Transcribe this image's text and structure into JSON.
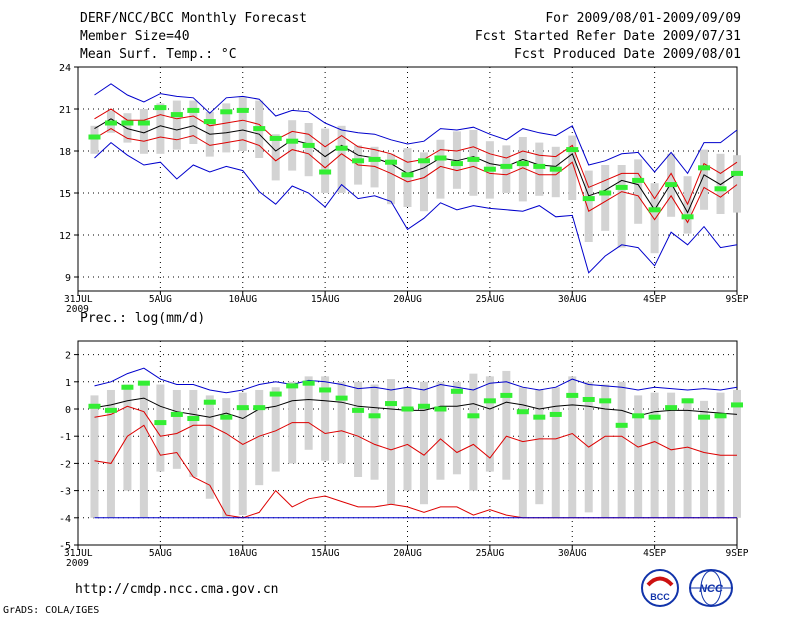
{
  "header": {
    "title": "DERF/NCC/BCC Monthly Forecast",
    "member_size": "Member Size=40",
    "variable": "Mean Surf. Temp.: °C",
    "forecast_period": "For 2009/08/01-2009/09/09",
    "fcst_started": "Fcst Started Refer Date 2009/07/31",
    "fcst_produced": "Fcst Produced Date 2009/08/01"
  },
  "footer": {
    "url": "http://cmdp.ncc.cma.gov.cn",
    "grads_credit": "GrADS: COLA/IGES",
    "logo_bcc_text": "BCC",
    "logo_ncc_text": "NCC"
  },
  "colors": {
    "envelope": "#0000cc",
    "spread": "#dd0000",
    "mean": "#000000",
    "observed": "#33ee33",
    "box": "#d3d3d3"
  },
  "chart_data": [
    {
      "type": "line",
      "title": "Mean Surf. Temp.: °C",
      "x_ticks": [
        "31JUL\n2009",
        "5AUG",
        "10AUG",
        "15AUG",
        "20AUG",
        "25AUG",
        "30AUG",
        "4SEP",
        "9SEP"
      ],
      "x_tick_days": [
        0,
        5,
        10,
        15,
        20,
        25,
        30,
        35,
        40
      ],
      "ylim": [
        8,
        24
      ],
      "y_ticks": [
        9,
        12,
        15,
        18,
        21,
        24
      ],
      "grid": true,
      "days": [
        1,
        2,
        3,
        4,
        5,
        6,
        7,
        8,
        9,
        10,
        11,
        12,
        13,
        14,
        15,
        16,
        17,
        18,
        19,
        20,
        21,
        22,
        23,
        24,
        25,
        26,
        27,
        28,
        29,
        30,
        31,
        32,
        33,
        34,
        35,
        36,
        37,
        38,
        39,
        40
      ],
      "series": [
        {
          "name": "max",
          "values": [
            22.0,
            22.8,
            22.0,
            21.5,
            22.1,
            21.9,
            21.8,
            20.7,
            21.8,
            21.9,
            21.7,
            20.5,
            20.9,
            20.8,
            20.0,
            19.5,
            19.3,
            19.2,
            18.8,
            18.5,
            18.7,
            19.6,
            19.5,
            19.7,
            19.2,
            18.8,
            19.6,
            19.3,
            19.1,
            19.8,
            17.0,
            17.3,
            17.8,
            17.9,
            16.5,
            17.9,
            16.4,
            18.6,
            18.6,
            19.5
          ]
        },
        {
          "name": "upper",
          "values": [
            20.3,
            21.0,
            20.2,
            20.2,
            20.6,
            20.3,
            20.5,
            19.8,
            20.0,
            20.2,
            19.9,
            18.8,
            19.4,
            19.2,
            18.3,
            19.1,
            18.3,
            18.1,
            17.8,
            17.2,
            17.4,
            18.1,
            18.0,
            18.3,
            17.8,
            17.5,
            18.0,
            17.7,
            17.6,
            18.4,
            15.4,
            15.9,
            16.4,
            16.4,
            14.6,
            16.4,
            14.2,
            17.1,
            16.4,
            17.2
          ]
        },
        {
          "name": "mean",
          "values": [
            19.6,
            20.3,
            19.6,
            19.3,
            19.8,
            19.5,
            19.8,
            19.2,
            19.3,
            19.5,
            19.2,
            18.0,
            18.8,
            18.5,
            17.6,
            18.4,
            17.7,
            17.5,
            17.1,
            16.4,
            16.8,
            17.5,
            17.3,
            17.6,
            17.1,
            16.9,
            17.4,
            17.0,
            16.9,
            17.8,
            14.8,
            15.2,
            15.9,
            15.6,
            13.8,
            15.7,
            13.6,
            16.3,
            15.6,
            16.4
          ]
        },
        {
          "name": "lower",
          "values": [
            18.9,
            19.6,
            18.9,
            18.7,
            19.0,
            18.8,
            19.1,
            18.4,
            18.6,
            18.8,
            18.4,
            17.3,
            18.1,
            17.8,
            16.8,
            17.8,
            17.0,
            16.9,
            16.4,
            15.8,
            16.1,
            16.9,
            16.6,
            16.9,
            16.4,
            16.3,
            16.8,
            16.3,
            16.3,
            17.2,
            13.7,
            14.4,
            15.1,
            14.8,
            13.1,
            14.8,
            12.9,
            15.4,
            14.7,
            15.6
          ]
        },
        {
          "name": "min",
          "values": [
            17.5,
            18.6,
            17.7,
            17.0,
            17.2,
            16.0,
            17.0,
            16.5,
            16.9,
            16.6,
            15.1,
            14.2,
            15.5,
            15.0,
            14.0,
            15.6,
            14.6,
            14.8,
            14.4,
            12.4,
            13.2,
            14.3,
            13.8,
            14.1,
            13.9,
            13.8,
            13.7,
            14.1,
            13.3,
            13.4,
            9.3,
            10.5,
            11.3,
            11.1,
            9.8,
            12.2,
            11.3,
            12.6,
            11.1,
            11.3
          ]
        },
        {
          "name": "obs",
          "values": [
            19.0,
            20.0,
            20.0,
            20.0,
            21.1,
            20.6,
            20.9,
            20.1,
            20.8,
            20.9,
            19.6,
            18.9,
            18.7,
            18.4,
            16.5,
            18.2,
            17.3,
            17.4,
            17.2,
            16.3,
            17.3,
            17.5,
            17.1,
            17.4,
            16.7,
            16.9,
            17.1,
            16.9,
            16.7,
            18.1,
            14.6,
            15.0,
            15.4,
            15.9,
            13.8,
            15.6,
            13.3,
            16.8,
            15.3,
            16.4
          ]
        }
      ],
      "boxes": [
        [
          17.8,
          19.8
        ],
        [
          19.3,
          20.9
        ],
        [
          18.6,
          20.7
        ],
        [
          17.8,
          21.0
        ],
        [
          17.8,
          21.4
        ],
        [
          18.1,
          21.6
        ],
        [
          18.5,
          21.6
        ],
        [
          17.6,
          20.8
        ],
        [
          17.9,
          21.4
        ],
        [
          18.0,
          21.9
        ],
        [
          17.5,
          21.6
        ],
        [
          15.9,
          19.2
        ],
        [
          16.6,
          20.2
        ],
        [
          16.2,
          20.0
        ],
        [
          15.0,
          19.6
        ],
        [
          15.0,
          19.8
        ],
        [
          15.6,
          18.4
        ],
        [
          15.4,
          18.3
        ],
        [
          14.2,
          17.8
        ],
        [
          14.0,
          18.2
        ],
        [
          13.7,
          17.9
        ],
        [
          14.6,
          18.8
        ],
        [
          15.3,
          19.4
        ],
        [
          14.8,
          19.5
        ],
        [
          14.6,
          18.7
        ],
        [
          15.0,
          18.4
        ],
        [
          14.4,
          19.0
        ],
        [
          14.8,
          18.6
        ],
        [
          14.7,
          18.3
        ],
        [
          14.5,
          19.1
        ],
        [
          11.5,
          16.6
        ],
        [
          12.3,
          17.0
        ],
        [
          11.1,
          17.0
        ],
        [
          12.8,
          17.4
        ],
        [
          10.7,
          15.7
        ],
        [
          13.3,
          17.8
        ],
        [
          12.1,
          16.2
        ],
        [
          13.8,
          18.1
        ],
        [
          13.5,
          17.8
        ],
        [
          13.6,
          17.7
        ]
      ]
    },
    {
      "type": "line",
      "title": "Prec.: log(mm/d)",
      "x_ticks": [
        "31JUL\n2009",
        "5AUG",
        "10AUG",
        "15AUG",
        "20AUG",
        "25AUG",
        "30AUG",
        "4SEP",
        "9SEP"
      ],
      "x_tick_days": [
        0,
        5,
        10,
        15,
        20,
        25,
        30,
        35,
        40
      ],
      "ylim": [
        -5,
        2.5
      ],
      "y_ticks": [
        -5,
        -4,
        -3,
        -2,
        -1,
        0,
        1,
        2
      ],
      "grid": true,
      "days": [
        1,
        2,
        3,
        4,
        5,
        6,
        7,
        8,
        9,
        10,
        11,
        12,
        13,
        14,
        15,
        16,
        17,
        18,
        19,
        20,
        21,
        22,
        23,
        24,
        25,
        26,
        27,
        28,
        29,
        30,
        31,
        32,
        33,
        34,
        35,
        36,
        37,
        38,
        39,
        40
      ],
      "series": [
        {
          "name": "max",
          "values": [
            0.85,
            1.0,
            1.3,
            1.5,
            1.1,
            0.9,
            0.9,
            0.7,
            0.6,
            0.7,
            0.9,
            1.0,
            0.9,
            1.05,
            1.0,
            0.9,
            0.75,
            0.8,
            0.7,
            0.8,
            0.7,
            0.9,
            0.8,
            0.7,
            0.95,
            1.0,
            0.8,
            0.7,
            0.8,
            1.1,
            0.9,
            0.85,
            0.8,
            0.7,
            0.8,
            0.75,
            0.7,
            0.75,
            0.7,
            0.8
          ]
        },
        {
          "name": "mean",
          "values": [
            0.05,
            0.15,
            0.3,
            0.4,
            0.1,
            -0.1,
            -0.2,
            -0.3,
            -0.15,
            -0.35,
            0.0,
            0.1,
            0.3,
            0.35,
            0.3,
            0.25,
            0.1,
            0.05,
            0.0,
            -0.05,
            -0.05,
            0.1,
            0.1,
            0.2,
            0.0,
            0.25,
            0.15,
            0.0,
            0.1,
            0.15,
            0.1,
            0.0,
            -0.05,
            -0.25,
            -0.1,
            -0.05,
            -0.05,
            -0.1,
            -0.15,
            -0.2
          ]
        },
        {
          "name": "spread_lower",
          "values": [
            -0.3,
            -0.2,
            0.1,
            -0.1,
            -1.0,
            -0.9,
            -0.6,
            -0.6,
            -0.9,
            -1.3,
            -1.0,
            -0.8,
            -0.5,
            -0.5,
            -0.9,
            -0.8,
            -1.0,
            -1.3,
            -1.5,
            -1.3,
            -1.7,
            -1.1,
            -1.6,
            -1.3,
            -1.8,
            -1.0,
            -1.2,
            -1.1,
            -1.1,
            -0.9,
            -1.4,
            -1.0,
            -1.0,
            -1.4,
            -1.2,
            -1.5,
            -1.4,
            -1.6,
            -1.7,
            -1.7
          ]
        },
        {
          "name": "spread_lower2",
          "values": [
            -1.9,
            -2.0,
            -1.0,
            -0.6,
            -1.7,
            -1.6,
            -2.5,
            -2.8,
            -3.9,
            -4.0,
            -3.8,
            -3.0,
            -3.6,
            -3.3,
            -3.2,
            -3.4,
            -3.6,
            -3.6,
            -3.5,
            -3.6,
            -3.8,
            -3.6,
            -3.6,
            -3.9,
            -3.7,
            -3.9,
            -4.0,
            -4.0,
            -4.0,
            -4.0,
            -4.0,
            -4.0,
            -4.0,
            -4.0,
            -4.0,
            -4.0,
            -4.0,
            -4.0,
            -4.0,
            -4.0
          ]
        },
        {
          "name": "min",
          "values": [
            -4.0,
            -4.0,
            -4.0,
            -4.0,
            -4.0,
            -4.0,
            -4.0,
            -4.0,
            -4.0,
            -4.0,
            -4.0,
            -4.0,
            -4.0,
            -4.0,
            -4.0,
            -4.0,
            -4.0,
            -4.0,
            -4.0,
            -4.0,
            -4.0,
            -4.0,
            -4.0,
            -4.0,
            -4.0,
            -4.0,
            -4.0,
            -4.0,
            -4.0,
            -4.0,
            -4.0,
            -4.0,
            -4.0,
            -4.0,
            -4.0,
            -4.0,
            -4.0,
            -4.0,
            -4.0,
            -4.0
          ]
        },
        {
          "name": "obs",
          "values": [
            0.1,
            -0.05,
            0.8,
            0.95,
            -0.5,
            -0.2,
            -0.35,
            0.25,
            -0.3,
            0.05,
            0.05,
            0.55,
            0.85,
            0.95,
            0.7,
            0.4,
            -0.05,
            -0.25,
            0.2,
            0.0,
            0.1,
            0.0,
            0.65,
            -0.25,
            0.3,
            0.5,
            -0.1,
            -0.3,
            -0.2,
            0.5,
            0.35,
            0.3,
            -0.6,
            -0.25,
            -0.3,
            0.05,
            0.3,
            -0.3,
            -0.25,
            0.15
          ]
        }
      ],
      "boxes": [
        [
          -4.0,
          0.5
        ],
        [
          -4.0,
          0.7
        ],
        [
          -3.0,
          0.9
        ],
        [
          -4.0,
          1.0
        ],
        [
          -2.3,
          0.9
        ],
        [
          -2.2,
          0.7
        ],
        [
          -2.5,
          0.7
        ],
        [
          -3.3,
          0.5
        ],
        [
          -4.0,
          0.4
        ],
        [
          -3.9,
          0.6
        ],
        [
          -2.8,
          0.7
        ],
        [
          -2.3,
          0.8
        ],
        [
          -2.0,
          1.0
        ],
        [
          -1.5,
          1.2
        ],
        [
          -1.9,
          1.2
        ],
        [
          -2.0,
          1.0
        ],
        [
          -2.5,
          1.0
        ],
        [
          -2.6,
          0.9
        ],
        [
          -3.5,
          1.1
        ],
        [
          -3.0,
          0.8
        ],
        [
          -3.5,
          1.0
        ],
        [
          -2.6,
          1.0
        ],
        [
          -2.4,
          1.0
        ],
        [
          -3.0,
          1.3
        ],
        [
          -2.3,
          1.2
        ],
        [
          -2.6,
          1.4
        ],
        [
          -4.0,
          0.8
        ],
        [
          -3.5,
          0.7
        ],
        [
          -4.0,
          0.8
        ],
        [
          -4.0,
          1.2
        ],
        [
          -3.8,
          1.0
        ],
        [
          -4.0,
          0.9
        ],
        [
          -4.0,
          1.0
        ],
        [
          -4.0,
          0.5
        ],
        [
          -4.0,
          0.6
        ],
        [
          -4.0,
          0.6
        ],
        [
          -4.0,
          0.4
        ],
        [
          -4.0,
          0.3
        ],
        [
          -4.0,
          0.6
        ],
        [
          -4.0,
          0.7
        ]
      ]
    }
  ]
}
